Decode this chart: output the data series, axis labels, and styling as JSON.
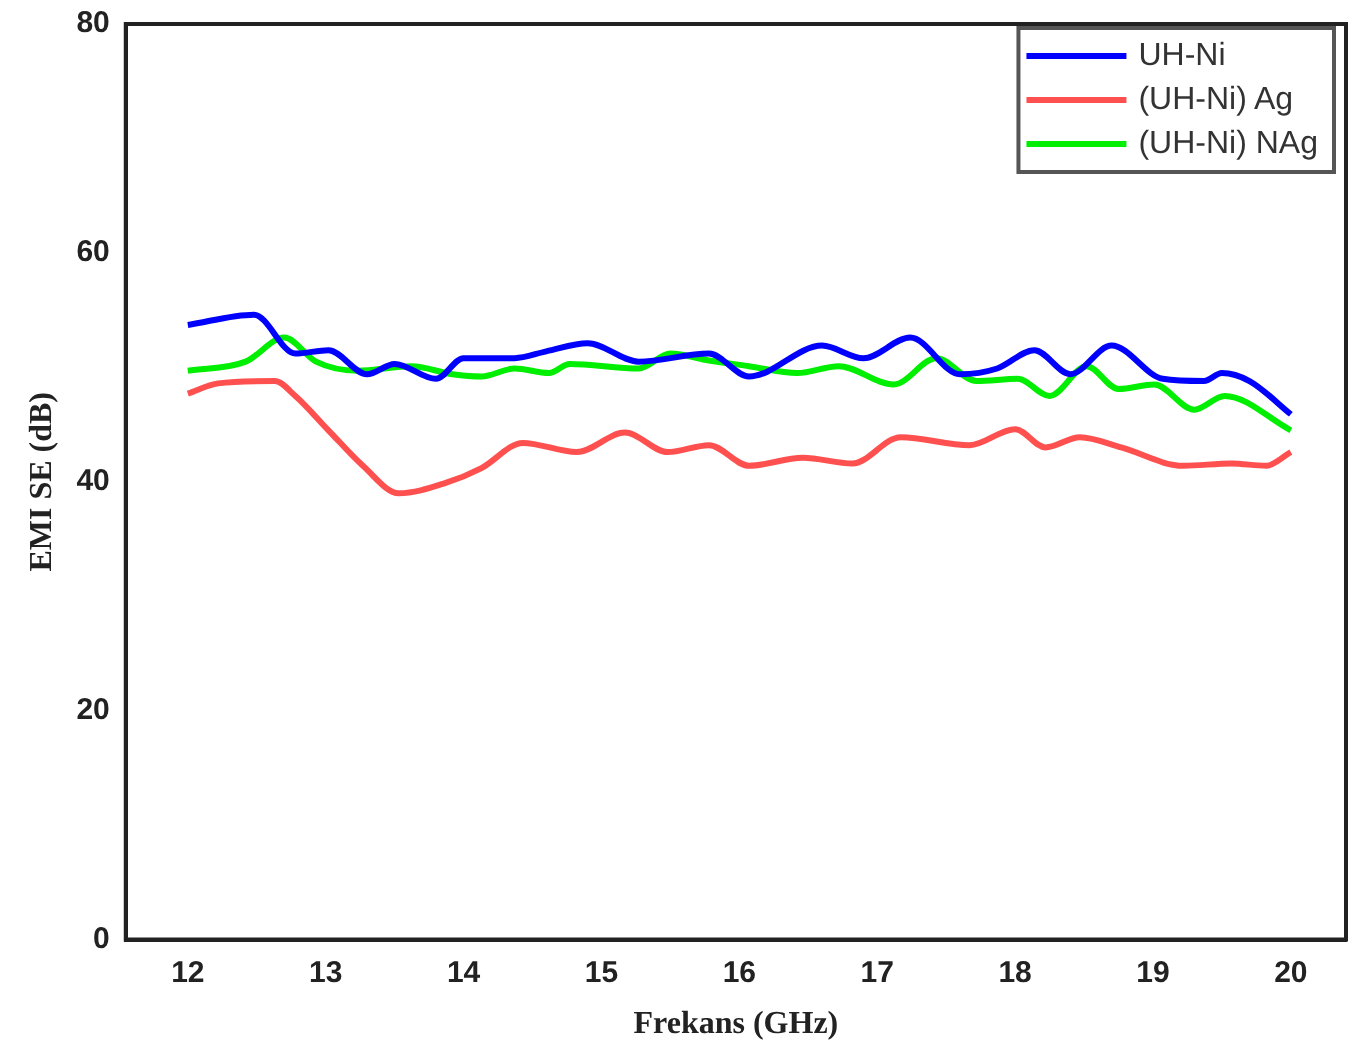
{
  "chart_data": {
    "type": "line",
    "xlabel": "Frekans (GHz)",
    "ylabel": "EMI SE (dB)",
    "xlim": [
      11.55,
      20.4
    ],
    "xticks": [
      12,
      13,
      14,
      15,
      16,
      17,
      18,
      19,
      20
    ],
    "ylim": [
      0,
      80
    ],
    "yticks": [
      0,
      20,
      40,
      60,
      80
    ],
    "grid": false,
    "legend": "top right",
    "marker": "none",
    "line_style": "solid",
    "series": [
      {
        "name": "UH-Ni",
        "color": "#0000ff",
        "x": [
          12,
          12.48,
          12.78,
          13.02,
          13.3,
          13.5,
          13.8,
          14.0,
          14.37,
          14.6,
          14.9,
          15.27,
          15.78,
          16.07,
          16.6,
          16.9,
          17.24,
          17.6,
          17.87,
          18.14,
          18.4,
          18.7,
          19.07,
          19.37,
          19.5,
          19.7,
          20.0
        ],
        "values": [
          53.7,
          54.6,
          51.2,
          51.5,
          49.4,
          50.3,
          49.0,
          50.8,
          50.8,
          51.4,
          52.1,
          50.5,
          51.2,
          49.2,
          51.9,
          50.8,
          52.6,
          49.4,
          49.9,
          51.5,
          49.4,
          51.9,
          49.0,
          48.8,
          49.5,
          48.8,
          45.9
        ]
      },
      {
        "name": "(UH-Ni) Ag",
        "color": "#ff5050",
        "x": [
          12,
          12.22,
          12.63,
          12.78,
          13.02,
          13.27,
          13.53,
          13.87,
          14.13,
          14.43,
          14.82,
          15.17,
          15.48,
          15.78,
          16.07,
          16.46,
          16.82,
          17.17,
          17.67,
          18.0,
          18.22,
          18.47,
          18.77,
          19.22,
          19.57,
          19.82,
          20.0
        ],
        "values": [
          47.7,
          48.6,
          48.8,
          47.5,
          44.5,
          41.4,
          39.0,
          39.9,
          41.2,
          43.4,
          42.6,
          44.3,
          42.6,
          43.2,
          41.4,
          42.1,
          41.6,
          43.9,
          43.2,
          44.6,
          43.0,
          43.9,
          43.0,
          41.4,
          41.6,
          41.4,
          42.6
        ]
      },
      {
        "name": "(UH-Ni) NAg",
        "color": "#00ee00",
        "x": [
          12,
          12.42,
          12.7,
          12.93,
          13.23,
          13.62,
          13.92,
          14.13,
          14.37,
          14.62,
          14.77,
          15.27,
          15.5,
          15.78,
          16.07,
          16.42,
          16.72,
          17.12,
          17.43,
          17.72,
          18.02,
          18.25,
          18.52,
          18.75,
          19.01,
          19.3,
          19.52,
          20.0
        ],
        "values": [
          49.7,
          50.5,
          52.6,
          50.5,
          49.7,
          50.1,
          49.4,
          49.2,
          49.9,
          49.5,
          50.3,
          49.9,
          51.2,
          50.6,
          50.1,
          49.5,
          50.1,
          48.5,
          50.8,
          48.8,
          49.0,
          47.5,
          50.1,
          48.1,
          48.5,
          46.3,
          47.5,
          44.5
        ]
      }
    ]
  }
}
